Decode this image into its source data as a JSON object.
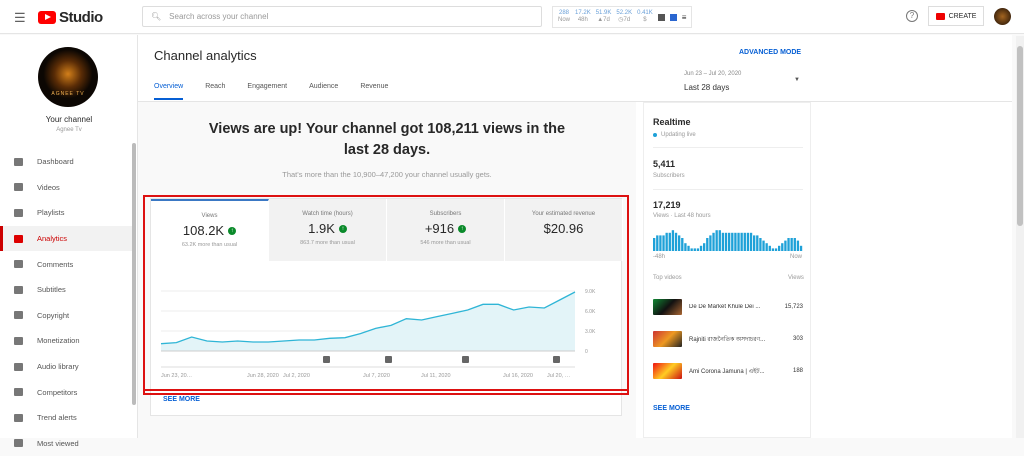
{
  "header": {
    "logo": "Studio",
    "search_placeholder": "Search across your channel",
    "stats": [
      {
        "value": "288",
        "label": "Now"
      },
      {
        "value": "17.2K",
        "label": "48h"
      },
      {
        "value": "51.9K",
        "label": "▲7d"
      },
      {
        "value": "52.2K",
        "label": "◷7d"
      },
      {
        "value": "0.41K",
        "label": "$"
      }
    ],
    "create": "CREATE",
    "help": "?"
  },
  "sidebar": {
    "channel_logo_text": "AGNEE TV",
    "your_channel": "Your channel",
    "channel_name": "Agnee Tv",
    "items": [
      {
        "label": "Dashboard"
      },
      {
        "label": "Videos"
      },
      {
        "label": "Playlists"
      },
      {
        "label": "Analytics",
        "active": true
      },
      {
        "label": "Comments"
      },
      {
        "label": "Subtitles"
      },
      {
        "label": "Copyright"
      },
      {
        "label": "Monetization"
      },
      {
        "label": "Audio library"
      },
      {
        "label": "Competitors"
      },
      {
        "label": "Trend alerts"
      },
      {
        "label": "Most viewed"
      }
    ]
  },
  "main": {
    "title": "Channel analytics",
    "advanced": "ADVANCED MODE",
    "tabs": [
      "Overview",
      "Reach",
      "Engagement",
      "Audience",
      "Revenue"
    ],
    "date_range": "Jun 23 – Jul 20, 2020",
    "date_label": "Last 28 days",
    "headline": "Views are up! Your channel got 108,211 views in the last 28 days.",
    "subline": "That's more than the 10,900–47,200 your channel usually gets.",
    "metrics": [
      {
        "label": "Views",
        "value": "108.2K",
        "note": "63.2K more than usual",
        "up": true
      },
      {
        "label": "Watch time (hours)",
        "value": "1.9K",
        "note": "863.7 more than usual",
        "up": true
      },
      {
        "label": "Subscribers",
        "value": "+916",
        "note": "546 more than usual",
        "up": true
      },
      {
        "label": "Your estimated revenue",
        "value": "$20.96",
        "note": "",
        "up": false
      }
    ],
    "see_more": "SEE MORE",
    "chart": {
      "type": "area",
      "y_ticks": [
        "9.0K",
        "6.0K",
        "3.0K",
        "0"
      ],
      "ylim": [
        0,
        9000
      ],
      "x_ticks": [
        "Jun 23, 20…",
        "Jun 28, 2020",
        "Jul 2, 2020",
        "Jul 7, 2020",
        "Jul 11, 2020",
        "Jul 16, 2020",
        "Jul 20, …"
      ],
      "values": [
        1100,
        1250,
        2100,
        1500,
        1350,
        1500,
        1350,
        1350,
        1500,
        1650,
        1650,
        1900,
        2000,
        2600,
        3400,
        3850,
        4850,
        4650,
        5150,
        5650,
        6150,
        7000,
        7000,
        6150,
        6600,
        6450,
        7650,
        8850
      ],
      "color": "#2fb5d6"
    }
  },
  "realtime": {
    "title": "Realtime",
    "live": "Updating live",
    "subscribers": "5,411",
    "subscribers_label": "Subscribers",
    "views": "17,219",
    "views_label": "Views · Last 48 hours",
    "axis_start": "-48h",
    "axis_end": "Now",
    "bars": [
      5,
      6,
      6,
      6,
      7,
      7,
      8,
      7,
      6,
      5,
      3,
      2,
      1,
      1,
      1,
      2,
      3,
      5,
      6,
      7,
      8,
      8,
      7,
      7,
      7,
      7,
      7,
      7,
      7,
      7,
      7,
      7,
      6,
      6,
      5,
      4,
      3,
      2,
      1,
      1,
      2,
      3,
      4,
      5,
      5,
      5,
      4,
      2
    ],
    "top_videos_label": "Top videos",
    "views_col": "Views",
    "videos": [
      {
        "title": "De De Market Khule Dei ...",
        "views": "15,723"
      },
      {
        "title": "Rajniti রাজনৈতিক অসদাচরণ...",
        "views": "303"
      },
      {
        "title": "Ami Corona Jamuna | এইট...",
        "views": "188"
      }
    ],
    "see_more": "SEE MORE"
  }
}
